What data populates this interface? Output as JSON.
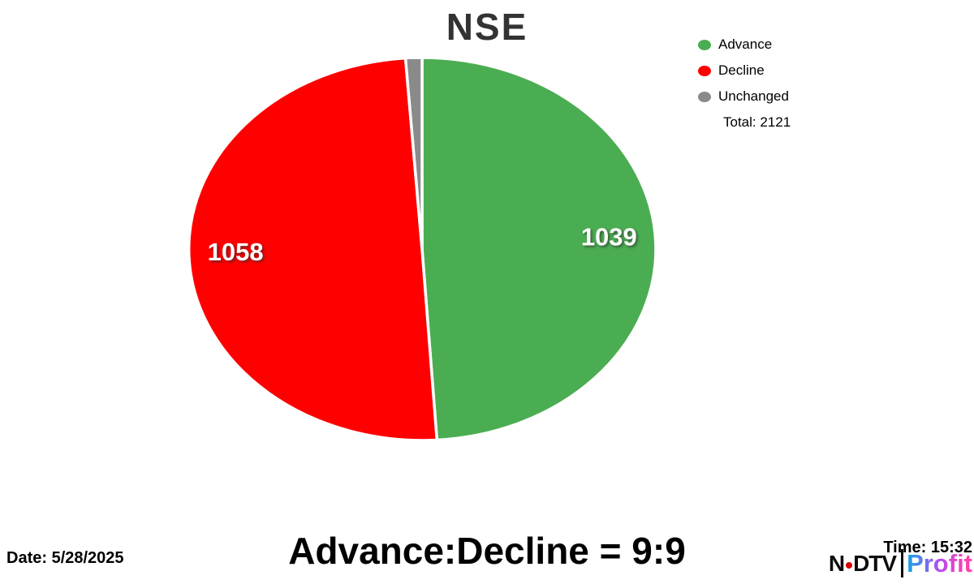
{
  "title": "NSE",
  "chart_data": {
    "type": "pie",
    "title": "NSE",
    "categories": [
      "Advance",
      "Decline",
      "Unchanged"
    ],
    "values": [
      1039,
      1058,
      24
    ],
    "colors": [
      "#4bad52",
      "#fe0000",
      "#8a8a8a"
    ],
    "total": 2121,
    "start_angle_deg": 0,
    "direction": "clockwise",
    "show_labels": [
      true,
      true,
      false
    ],
    "label_color": "#ffffff",
    "legend_position": "top-right",
    "legend_entries": [
      "Advance",
      "Decline",
      "Unchanged"
    ]
  },
  "legend": {
    "total_label": "Total: 2121"
  },
  "footer": {
    "ratio_text": "Advance:Decline = 9:9",
    "date_label": "Date: 5/28/2025",
    "time_label": "Time: 15:32"
  },
  "branding": {
    "ndtv_n": "N",
    "ndtv_dtv": "DTV",
    "profit": "Profit",
    "dot_color": "#d90000",
    "profit_gradient_start": "#1e9de8",
    "profit_gradient_mid": "#b44df0",
    "profit_gradient_end": "#ff3fae"
  }
}
